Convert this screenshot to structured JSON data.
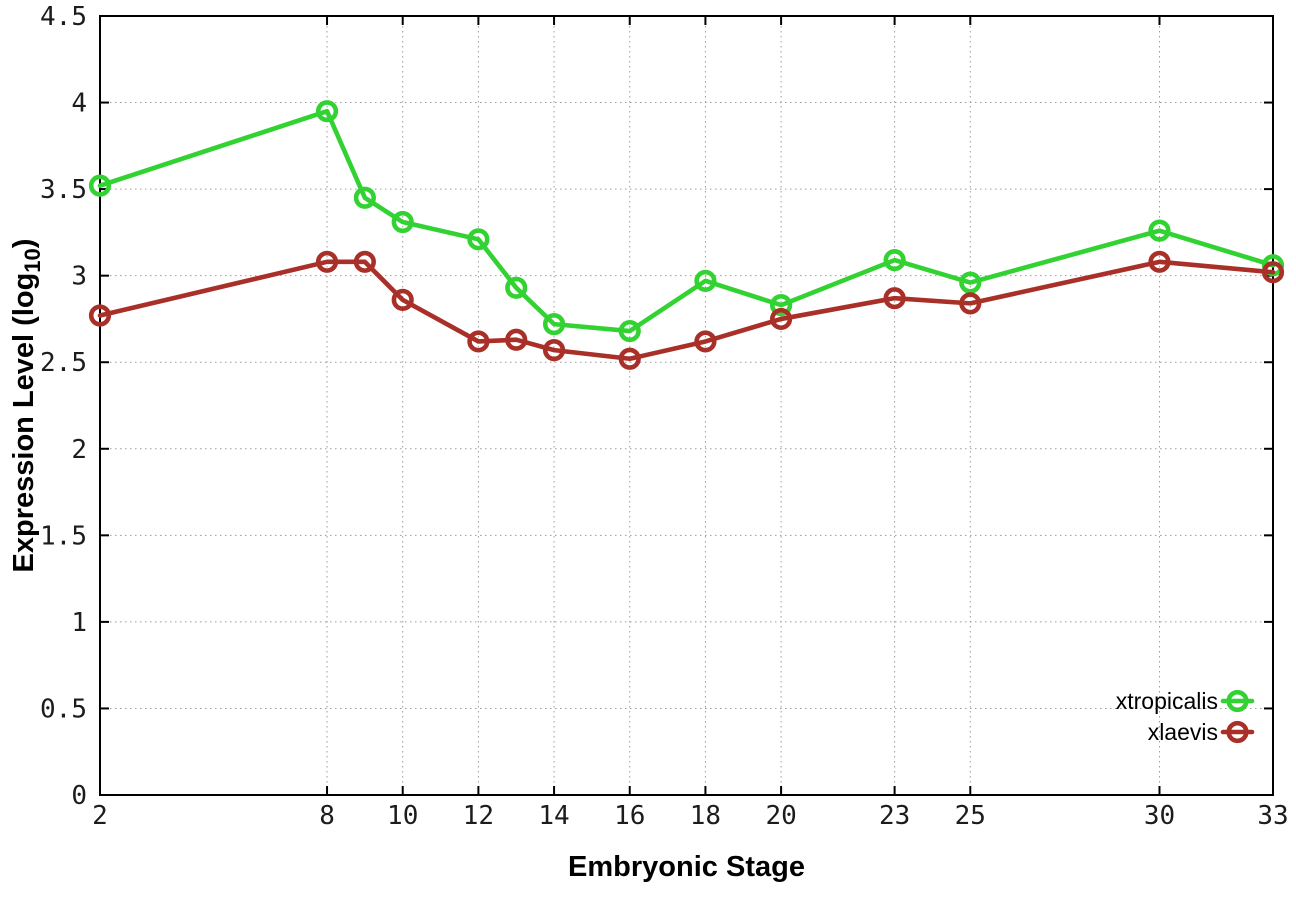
{
  "chart_data": {
    "type": "line",
    "title": "",
    "xlabel": "Embryonic Stage",
    "ylabel": {
      "main": "Expression Level (log",
      "sub": "10",
      "end": ")"
    },
    "x": [
      2,
      8,
      9,
      10,
      12,
      13,
      14,
      16,
      18,
      20,
      23,
      25,
      30,
      33
    ],
    "series": [
      {
        "name": "xtropicalis",
        "color": "#32d232",
        "values": [
          3.52,
          3.95,
          3.45,
          3.31,
          3.21,
          2.93,
          2.72,
          2.68,
          2.97,
          2.83,
          3.09,
          2.96,
          3.26,
          3.06
        ]
      },
      {
        "name": "xlaevis",
        "color": "#a93028",
        "values": [
          2.77,
          3.08,
          3.08,
          2.86,
          2.62,
          2.63,
          2.57,
          2.52,
          2.62,
          2.75,
          2.87,
          2.84,
          3.08,
          3.02
        ]
      }
    ],
    "xlim": [
      2,
      33
    ],
    "ylim": [
      0,
      4.5
    ],
    "x_ticks": [
      2,
      8,
      10,
      12,
      14,
      16,
      18,
      20,
      23,
      25,
      30,
      33
    ],
    "y_ticks": [
      0,
      0.5,
      1,
      1.5,
      2,
      2.5,
      3,
      3.5,
      4,
      4.5
    ],
    "y_tick_labels": [
      "0",
      "0.5",
      "1",
      "1.5",
      "2",
      "2.5",
      "3",
      "3.5",
      "4",
      "4.5"
    ],
    "grid": true,
    "legend_position": "bottom-right",
    "style": {
      "grid_color": "#9b9b9b",
      "axis_color": "#000000",
      "tick_text_color": "#1c1c1c",
      "background": "#ffffff"
    }
  }
}
